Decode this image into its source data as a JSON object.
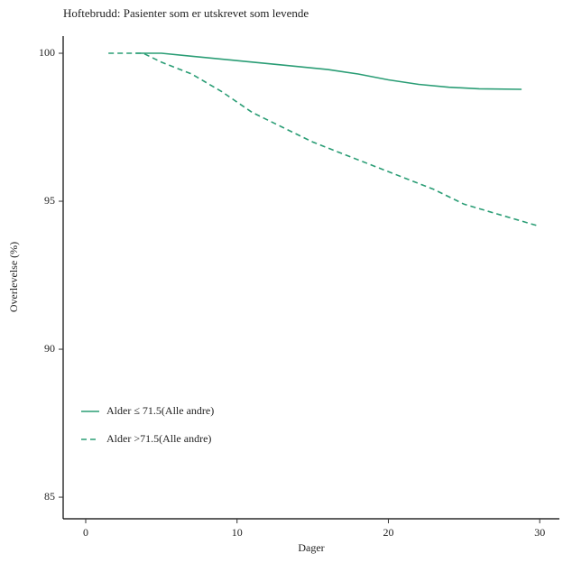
{
  "chart_data": {
    "type": "line",
    "title": "Hoftebrudd: Pasienter som er utskrevet som levende",
    "x_label": "Dager",
    "y_label": "Overlevelse (%)",
    "series": [
      {
        "name": "Alder ≤ 71.5(Alle andre)",
        "color": "#2a9d75",
        "linestyle": "solid",
        "x": [
          3.3,
          5,
          7,
          10,
          13,
          16,
          18,
          20,
          22,
          24,
          26,
          28.8
        ],
        "values": [
          100,
          100,
          99.9,
          99.75,
          99.6,
          99.45,
          99.3,
          99.1,
          98.95,
          98.85,
          98.8,
          98.78
        ]
      },
      {
        "name": "Alder >71.5(Alle andre)",
        "color": "#2a9d75",
        "linestyle": "dashed",
        "x": [
          1.5,
          3.8,
          5,
          7,
          9,
          11,
          13,
          15,
          17,
          19,
          21,
          23,
          25,
          27,
          29,
          30
        ],
        "values": [
          100,
          100,
          99.7,
          99.3,
          98.7,
          98.0,
          97.5,
          97.0,
          96.6,
          96.2,
          95.8,
          95.4,
          94.9,
          94.6,
          94.3,
          94.15
        ]
      }
    ],
    "xlim": [
      -1.49,
      31.3
    ],
    "ylim": [
      84.27,
      100.58
    ],
    "xticks": [
      0,
      10,
      20,
      30
    ],
    "yticks": [
      85,
      90,
      95,
      100
    ],
    "grid": false,
    "legend": "lower-left"
  }
}
